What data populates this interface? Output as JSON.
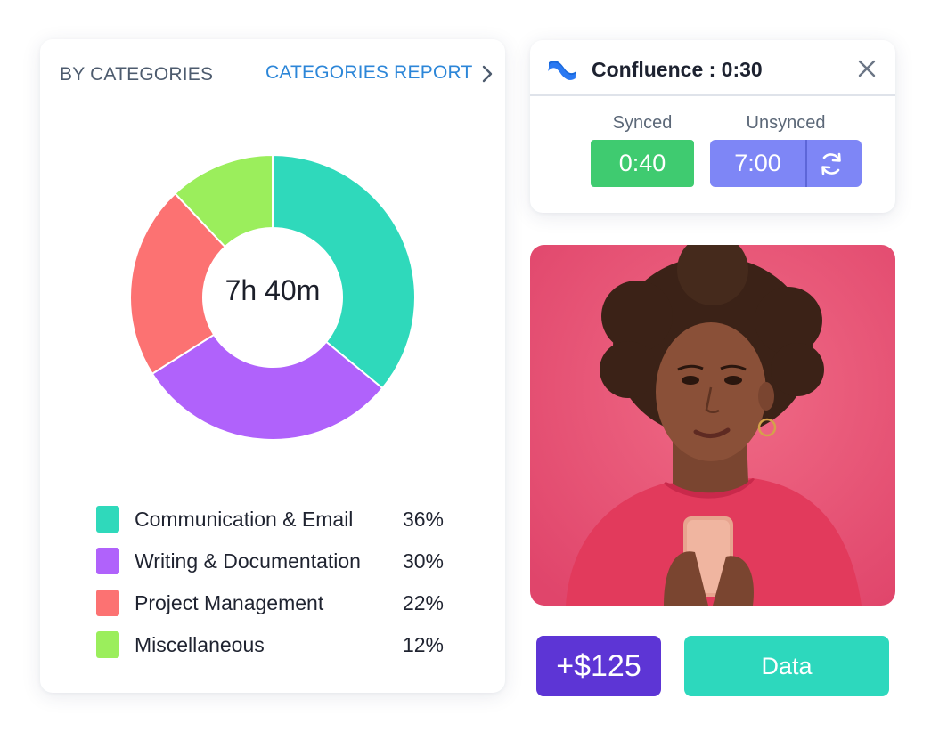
{
  "categories_card": {
    "title": "BY CATEGORIES",
    "report_link": "CATEGORIES REPORT",
    "total": "7h 40m"
  },
  "chart_data": {
    "type": "pie",
    "center_label": "7h 40m",
    "categories": [
      "Communication & Email",
      "Writing & Documentation",
      "Project Management",
      "Miscellaneous"
    ],
    "values": [
      36,
      30,
      22,
      12
    ],
    "percent_labels": [
      "36%",
      "30%",
      "22%",
      "12%"
    ],
    "colors": [
      "#2fd9bb",
      "#b062fb",
      "#fc7272",
      "#9bee5c"
    ]
  },
  "confluence": {
    "title": "Confluence : 0:30",
    "synced_label": "Synced",
    "synced_value": "0:40",
    "unsynced_label": "Unsynced",
    "unsynced_value": "7:00",
    "synced_color": "#3fcb70",
    "unsynced_color": "#7e86f6"
  },
  "amount": "+$125",
  "data_button": "Data",
  "icons": {
    "confluence": "confluence-logo-icon",
    "close": "close-icon",
    "sync": "sync-icon",
    "chevron": "chevron-right-icon"
  }
}
